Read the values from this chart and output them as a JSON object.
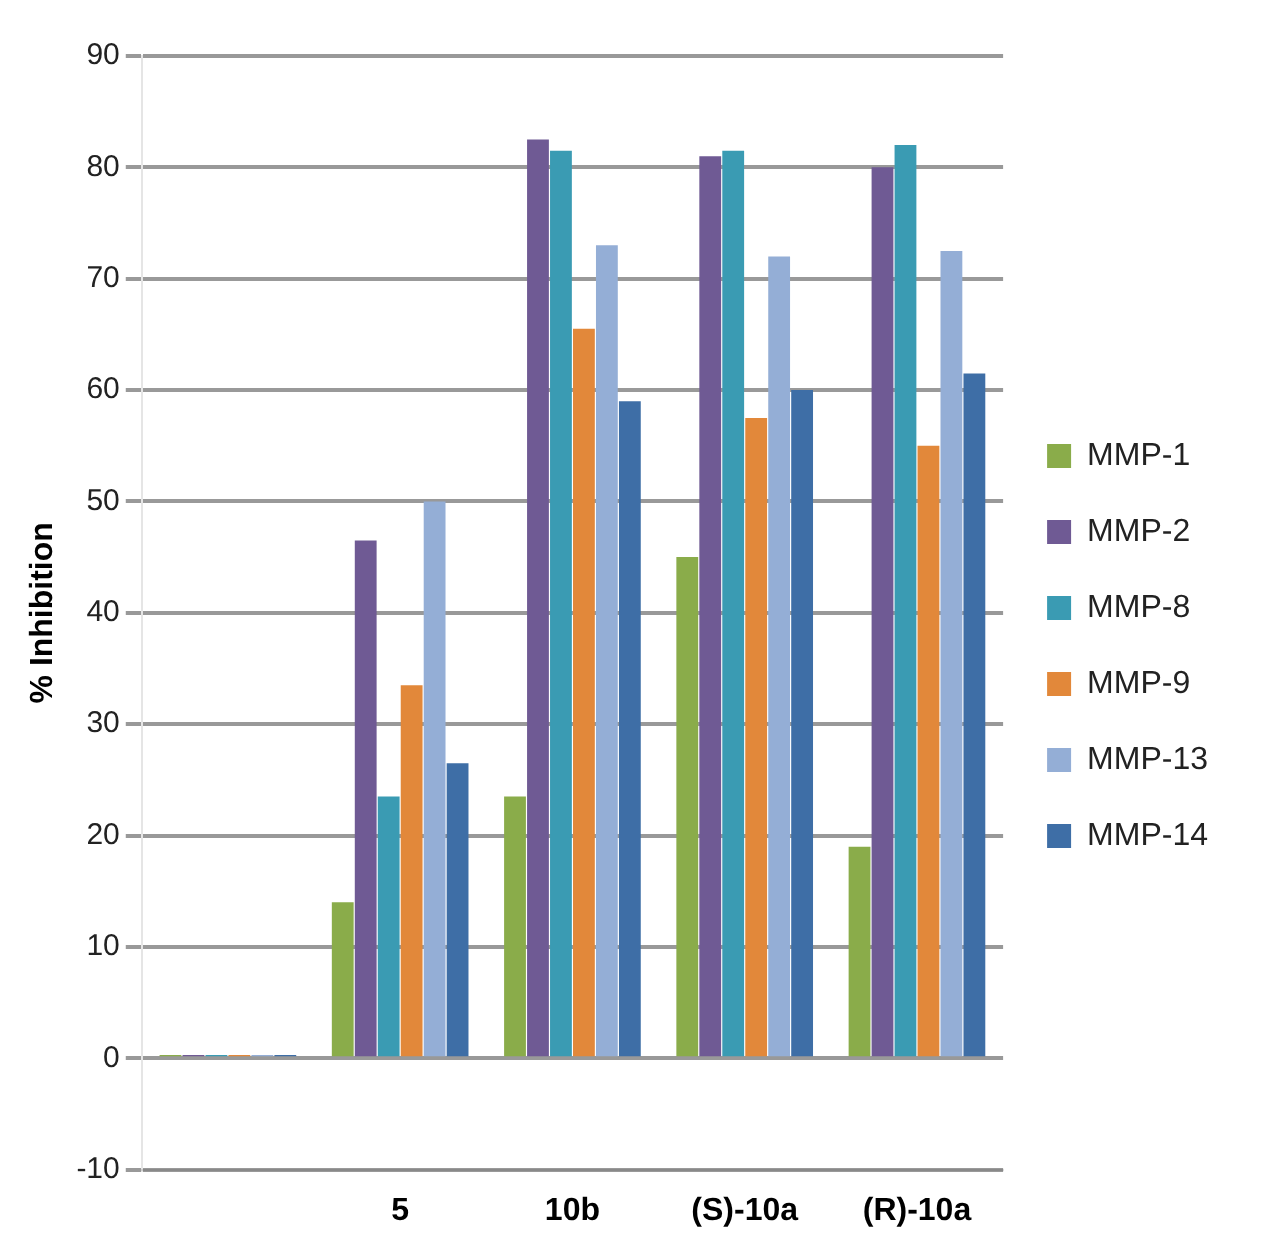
{
  "chart_data": {
    "type": "bar",
    "ylabel": "% Inhibition",
    "categories": [
      null,
      "5",
      "10b",
      "(S)-10a",
      "(R)-10a"
    ],
    "series": [
      {
        "name": "MMP-1",
        "color": "#8aac4a",
        "values": [
          0.3,
          14,
          23.5,
          45,
          19
        ]
      },
      {
        "name": "MMP-2",
        "color": "#6f5a94",
        "values": [
          0.3,
          46.5,
          82.5,
          81,
          80
        ]
      },
      {
        "name": "MMP-8",
        "color": "#3a9bb3",
        "values": [
          0.3,
          23.5,
          81.5,
          81.5,
          82
        ]
      },
      {
        "name": "MMP-9",
        "color": "#e2883a",
        "values": [
          0.3,
          33.5,
          65.5,
          57.5,
          55
        ]
      },
      {
        "name": "MMP-13",
        "color": "#94aed6",
        "values": [
          0.3,
          50,
          73,
          72,
          72.5
        ]
      },
      {
        "name": "MMP-14",
        "color": "#3e6ea6",
        "values": [
          0.3,
          26.5,
          59,
          60,
          61.5
        ]
      }
    ],
    "ylim": [
      -10,
      90
    ],
    "yticks": [
      -10,
      0,
      10,
      20,
      30,
      40,
      50,
      60,
      70,
      80,
      90
    ],
    "grid": "y",
    "legend": "right"
  }
}
